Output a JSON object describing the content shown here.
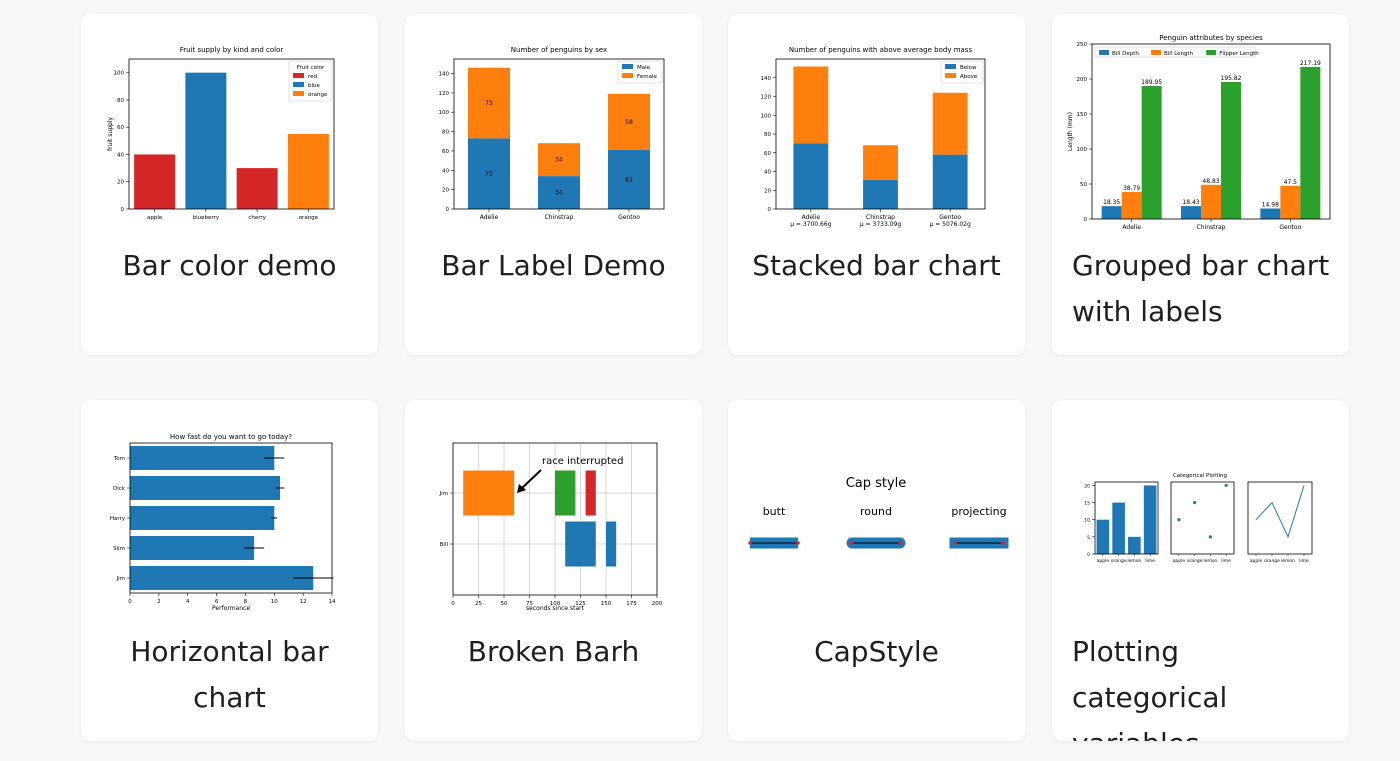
{
  "cards": [
    {
      "title": "Bar color demo",
      "chart_data": {
        "type": "bar",
        "title": "Fruit supply by kind and color",
        "ylabel": "fruit supply",
        "categories": [
          "apple",
          "blueberry",
          "cherry",
          "orange"
        ],
        "values": [
          40,
          100,
          30,
          55
        ],
        "bar_colors": [
          "#d62728",
          "#1f77b4",
          "#d62728",
          "#ff7f0e"
        ],
        "ylim": [
          0,
          110
        ],
        "yticks": [
          0,
          20,
          40,
          60,
          80,
          100
        ],
        "legend": {
          "title": "Fruit color",
          "entries": [
            {
              "label": "red",
              "color": "#d62728"
            },
            {
              "label": "blue",
              "color": "#1f77b4"
            },
            {
              "label": "orange",
              "color": "#ff7f0e"
            }
          ],
          "placement": "top-right"
        }
      }
    },
    {
      "title": "Bar Label Demo",
      "chart_data": {
        "type": "bar",
        "stacked": true,
        "title": "Number of penguins by sex",
        "categories": [
          "Adelie",
          "Chinstrap",
          "Gentoo"
        ],
        "series": [
          {
            "name": "Male",
            "values": [
              73,
              34,
              61
            ],
            "color": "#1f77b4"
          },
          {
            "name": "Female",
            "values": [
              73,
              34,
              58
            ],
            "color": "#ff7f0e"
          }
        ],
        "ylim": [
          0,
          155
        ],
        "yticks": [
          0,
          20,
          40,
          60,
          80,
          100,
          120,
          140
        ],
        "legend_placement": "top-right"
      }
    },
    {
      "title": "Stacked bar chart",
      "chart_data": {
        "type": "bar",
        "stacked": true,
        "title": "Number of penguins with above average body mass",
        "categories": [
          "Adelie",
          "Chinstrap",
          "Gentoo"
        ],
        "sublabels": [
          "μ = 3700.66g",
          "μ = 3733.09g",
          "μ = 5076.02g"
        ],
        "series": [
          {
            "name": "Below",
            "values": [
              70,
              31,
              58
            ],
            "color": "#1f77b4"
          },
          {
            "name": "Above",
            "values": [
              82,
              37,
              66
            ],
            "color": "#ff7f0e"
          }
        ],
        "ylim": [
          0,
          160
        ],
        "yticks": [
          0,
          20,
          40,
          60,
          80,
          100,
          120,
          140
        ],
        "legend_placement": "top-right"
      }
    },
    {
      "title": "Grouped bar chart with labels",
      "chart_data": {
        "type": "bar",
        "grouped": true,
        "title": "Penguin attributes by species",
        "ylabel": "Length (mm)",
        "categories": [
          "Adelie",
          "Chinstrap",
          "Gentoo"
        ],
        "series": [
          {
            "name": "Bill Depth",
            "values": [
              18.35,
              18.43,
              14.98
            ],
            "color": "#1f77b4"
          },
          {
            "name": "Bill Length",
            "values": [
              38.79,
              48.83,
              47.5
            ],
            "color": "#ff7f0e"
          },
          {
            "name": "Flipper Length",
            "values": [
              189.95,
              195.82,
              217.19
            ],
            "color": "#2ca02c"
          }
        ],
        "value_labels": [
          [
            "18.35",
            "38.79",
            "189.95"
          ],
          [
            "18.43",
            "48.83",
            "195.82"
          ],
          [
            "14.98",
            "47.5",
            "217.19"
          ]
        ],
        "ylim": [
          0,
          250
        ],
        "yticks": [
          0,
          50,
          100,
          150,
          200,
          250
        ],
        "legend_placement": "top-left"
      }
    },
    {
      "title": "Horizontal bar chart",
      "chart_data": {
        "type": "bar",
        "orientation": "horizontal",
        "title": "How fast do you want to go today?",
        "xlabel": "Performance",
        "categories": [
          "Tom",
          "Dick",
          "Harry",
          "Slim",
          "Jim"
        ],
        "values": [
          10.0,
          10.4,
          10.0,
          8.6,
          12.7
        ],
        "errors": [
          0.7,
          0.3,
          0.2,
          0.7,
          1.4
        ],
        "xlim": [
          0,
          14
        ],
        "xticks": [
          0,
          2,
          4,
          6,
          8,
          10,
          12,
          14
        ],
        "color": "#1f77b4"
      }
    },
    {
      "title": "Broken Barh",
      "chart_data": {
        "type": "bar",
        "orientation": "broken-horizontal",
        "xlabel": "seconds since start",
        "categories": [
          "Jim",
          "Bill"
        ],
        "xlim": [
          0,
          200
        ],
        "xticks": [
          0,
          25,
          50,
          75,
          100,
          125,
          150,
          175,
          200
        ],
        "grid": true,
        "segments": [
          {
            "row": "Jim",
            "start": 10,
            "width": 50,
            "color": "#ff7f0e"
          },
          {
            "row": "Jim",
            "start": 100,
            "width": 20,
            "color": "#2ca02c"
          },
          {
            "row": "Jim",
            "start": 130,
            "width": 10,
            "color": "#d62728"
          },
          {
            "row": "Bill",
            "start": 110,
            "width": 30,
            "color": "#1f77b4"
          },
          {
            "row": "Bill",
            "start": 150,
            "width": 10,
            "color": "#1f77b4"
          }
        ],
        "annotation": "race interrupted"
      }
    },
    {
      "title": "CapStyle",
      "diagram": {
        "heading": "Cap style",
        "styles": [
          "butt",
          "round",
          "projecting"
        ],
        "line_color": "#1f77b4",
        "center_color": "#000000",
        "marker_color": "#d62728"
      }
    },
    {
      "title": "Plotting categorical variables",
      "chart_data": {
        "title": "Categorical Plotting",
        "categories": [
          "apple",
          "orange",
          "lemon",
          "lime"
        ],
        "values": [
          10,
          15,
          5,
          20
        ],
        "panels": [
          "bar",
          "scatter",
          "line"
        ],
        "ylim": [
          0,
          21
        ],
        "yticks": [
          0,
          5,
          10,
          15,
          20
        ],
        "color": "#1f77b4"
      }
    }
  ]
}
